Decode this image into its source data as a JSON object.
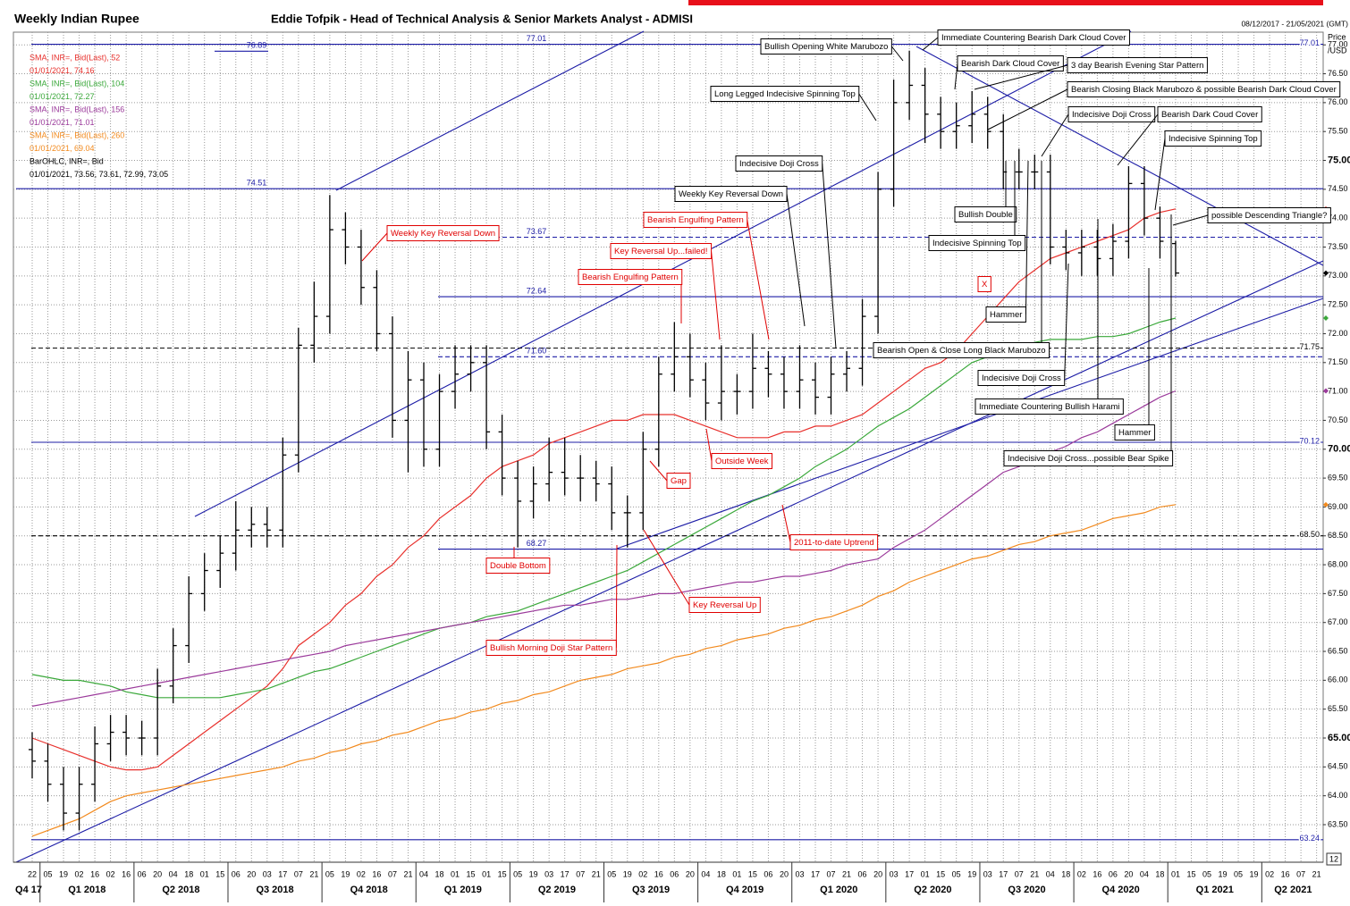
{
  "chart_data": {
    "type": "ohlc",
    "title": "Weekly Indian Rupee",
    "subtitle": "Eddie Tofpik - Head of Technical Analysis & Senior Markets Analyst - ADMISI",
    "date_range": "08/12/2017 - 21/05/2021 (GMT)",
    "ylabel": "Price",
    "yunit": "/USD",
    "scale_box": "12",
    "grid": true,
    "ylim": [
      62.85,
      77.22
    ],
    "yticks": [
      {
        "value": 63.5,
        "label": "63.50"
      },
      {
        "value": 64,
        "label": "64.00"
      },
      {
        "value": 64.5,
        "label": "64.50"
      },
      {
        "value": 65,
        "label": "65.00"
      },
      {
        "value": 65.5,
        "label": "65.50"
      },
      {
        "value": 66,
        "label": "66.00"
      },
      {
        "value": 66.5,
        "label": "66.50"
      },
      {
        "value": 67,
        "label": "67.00"
      },
      {
        "value": 67.5,
        "label": "67.50"
      },
      {
        "value": 68,
        "label": "68.00"
      },
      {
        "value": 68.5,
        "label": "68.50"
      },
      {
        "value": 69,
        "label": "69.00"
      },
      {
        "value": 69.5,
        "label": "69.50"
      },
      {
        "value": 70,
        "label": "70.00"
      },
      {
        "value": 70.5,
        "label": "70.50"
      },
      {
        "value": 71,
        "label": "71.00"
      },
      {
        "value": 71.5,
        "label": "71.50"
      },
      {
        "value": 72,
        "label": "72.00"
      },
      {
        "value": 72.5,
        "label": "72.50"
      },
      {
        "value": 73,
        "label": "73.00"
      },
      {
        "value": 73.5,
        "label": "73.50"
      },
      {
        "value": 74,
        "label": "74.00"
      },
      {
        "value": 74.5,
        "label": "74.50"
      },
      {
        "value": 75,
        "label": "75.00"
      },
      {
        "value": 75.5,
        "label": "75.50"
      },
      {
        "value": 76,
        "label": "76.00"
      },
      {
        "value": 76.5,
        "label": "76.50"
      },
      {
        "value": 77,
        "label": "77.00"
      }
    ],
    "categories": [
      "22",
      "05",
      "19",
      "02",
      "16",
      "02",
      "16",
      "06",
      "20",
      "04",
      "18",
      "01",
      "15",
      "06",
      "20",
      "03",
      "17",
      "07",
      "21",
      "05",
      "19",
      "02",
      "16",
      "07",
      "21",
      "04",
      "18",
      "01",
      "15",
      "01",
      "15",
      "05",
      "19",
      "03",
      "17",
      "07",
      "21",
      "05",
      "19",
      "02",
      "16",
      "06",
      "20",
      "04",
      "18",
      "01",
      "15",
      "06",
      "20",
      "03",
      "17",
      "07",
      "21",
      "06",
      "20",
      "03",
      "17",
      "01",
      "15",
      "05",
      "19",
      "03",
      "17",
      "07",
      "21",
      "04",
      "18",
      "02",
      "16",
      "06",
      "20",
      "04",
      "18",
      "01",
      "15",
      "05",
      "19",
      "05",
      "19",
      "02",
      "16",
      "07",
      "21"
    ],
    "quarters": [
      "Q4 17",
      "Q1 2018",
      "Q2 2018",
      "Q3 2018",
      "Q4 2018",
      "Q1 2019",
      "Q2 2019",
      "Q3 2019",
      "Q4 2019",
      "Q1 2020",
      "Q2 2020",
      "Q3 2020",
      "Q4 2020",
      "Q1 2021",
      "Q2 2021"
    ],
    "ohlc": {
      "name": "BarOHLC, INR=, Bid",
      "note": "01/01/2021, 73.56, 73.61, 72.99, 73.05",
      "color": "#000000",
      "open": [
        64.8,
        64.6,
        64.2,
        63.7,
        64.2,
        64.9,
        65.1,
        65.0,
        65.0,
        65.9,
        66.6,
        67.5,
        67.9,
        68.2,
        68.6,
        68.7,
        68.6,
        69.9,
        71.8,
        72.3,
        73.8,
        73.5,
        72.8,
        72.0,
        70.5,
        71.2,
        70.0,
        71.0,
        71.3,
        71.5,
        70.3,
        69.5,
        69.1,
        69.4,
        69.6,
        69.5,
        69.5,
        69.4,
        68.9,
        68.9,
        70.0,
        71.3,
        71.6,
        71.2,
        70.8,
        71.0,
        71.0,
        71.4,
        71.3,
        71.0,
        71.2,
        70.9,
        71.3,
        71.4,
        72.3,
        74.5,
        76.0,
        76.3,
        75.8,
        75.5,
        75.6,
        75.8,
        75.5,
        74.8,
        74.8,
        74.8,
        73.5,
        73.4,
        73.5,
        73.3,
        73.6,
        74.6,
        74.0,
        73.56,
        null,
        null,
        null,
        null,
        null,
        null,
        null,
        null,
        null
      ],
      "high": [
        65.1,
        64.9,
        64.5,
        64.5,
        65.2,
        65.4,
        65.4,
        65.3,
        66.2,
        66.9,
        67.8,
        68.2,
        68.5,
        69.1,
        69.0,
        69.0,
        70.2,
        72.1,
        72.9,
        74.4,
        74.1,
        73.8,
        73.1,
        72.3,
        71.7,
        71.5,
        71.3,
        71.8,
        71.8,
        71.8,
        70.6,
        69.8,
        69.7,
        70.2,
        70.2,
        69.9,
        69.8,
        69.7,
        69.2,
        70.3,
        71.6,
        72.2,
        72.0,
        71.5,
        71.8,
        71.3,
        72.0,
        71.7,
        71.6,
        71.8,
        71.5,
        71.6,
        71.7,
        72.6,
        74.8,
        76.4,
        76.9,
        76.6,
        76.1,
        76.0,
        76.2,
        76.1,
        75.8,
        75.2,
        75.1,
        75.1,
        73.8,
        73.8,
        73.8,
        73.9,
        74.9,
        74.9,
        74.2,
        73.61,
        null,
        null,
        null,
        null,
        null,
        null,
        null,
        null,
        null
      ],
      "low": [
        64.3,
        63.9,
        63.4,
        63.4,
        63.9,
        64.6,
        64.7,
        64.7,
        64.7,
        65.6,
        66.3,
        67.2,
        67.6,
        67.9,
        68.3,
        68.3,
        68.3,
        69.6,
        71.5,
        72.0,
        73.2,
        72.5,
        71.7,
        70.2,
        69.6,
        69.7,
        69.7,
        70.7,
        71.0,
        70.0,
        69.2,
        68.3,
        68.8,
        69.1,
        69.2,
        69.1,
        69.1,
        68.6,
        68.3,
        68.6,
        69.7,
        71.0,
        70.9,
        70.5,
        70.5,
        70.6,
        70.7,
        70.9,
        70.7,
        70.7,
        70.6,
        70.6,
        71.0,
        71.1,
        72.0,
        74.2,
        75.7,
        75.3,
        75.2,
        75.2,
        75.3,
        75.2,
        74.5,
        74.5,
        74.5,
        73.2,
        73.1,
        73.0,
        73.0,
        73.0,
        73.3,
        73.7,
        73.3,
        72.99,
        null,
        null,
        null,
        null,
        null,
        null,
        null,
        null,
        null
      ],
      "close": [
        64.6,
        64.2,
        63.7,
        64.2,
        64.9,
        65.1,
        65.0,
        65.0,
        65.9,
        66.6,
        67.5,
        67.9,
        68.2,
        68.6,
        68.7,
        68.6,
        69.9,
        71.8,
        72.3,
        73.8,
        73.5,
        72.8,
        72.0,
        70.5,
        71.2,
        70.0,
        71.0,
        71.3,
        71.5,
        70.3,
        69.5,
        69.1,
        69.4,
        69.6,
        69.5,
        69.5,
        69.4,
        68.9,
        68.9,
        70.0,
        71.3,
        71.6,
        71.2,
        70.8,
        71.0,
        71.0,
        71.4,
        71.3,
        71.0,
        71.2,
        70.9,
        71.3,
        71.4,
        72.3,
        74.5,
        76.0,
        76.3,
        75.8,
        75.5,
        75.6,
        75.8,
        75.5,
        74.8,
        74.8,
        74.8,
        73.5,
        73.4,
        73.5,
        73.3,
        73.6,
        74.6,
        74.0,
        73.6,
        73.05,
        null,
        null,
        null,
        null,
        null,
        null,
        null,
        null,
        null
      ]
    },
    "series": [
      {
        "name": "SMA, INR=, Bid(Last), 52",
        "note": "01/01/2021, 74.16",
        "color": "#e8302c",
        "values": [
          65.0,
          64.9,
          64.8,
          64.7,
          64.6,
          64.5,
          64.45,
          64.45,
          64.5,
          64.7,
          64.9,
          65.1,
          65.3,
          65.5,
          65.7,
          65.9,
          66.2,
          66.6,
          66.8,
          67.0,
          67.3,
          67.5,
          67.8,
          68.0,
          68.3,
          68.5,
          68.8,
          69.0,
          69.2,
          69.5,
          69.7,
          69.8,
          69.9,
          70.1,
          70.2,
          70.3,
          70.4,
          70.5,
          70.5,
          70.6,
          70.6,
          70.6,
          70.5,
          70.4,
          70.3,
          70.2,
          70.2,
          70.2,
          70.3,
          70.3,
          70.4,
          70.4,
          70.5,
          70.6,
          70.8,
          71.0,
          71.2,
          71.4,
          71.5,
          71.7,
          72.0,
          72.3,
          72.6,
          72.9,
          73.1,
          73.3,
          73.4,
          73.5,
          73.6,
          73.7,
          73.8,
          74.0,
          74.1,
          74.16,
          null,
          null,
          null,
          null,
          null,
          null,
          null,
          null,
          null
        ]
      },
      {
        "name": "SMA, INR=, Bid(Last), 104",
        "note": "01/01/2021, 72.27",
        "color": "#3aa83a",
        "values": [
          66.1,
          66.05,
          66.0,
          66.0,
          65.95,
          65.9,
          65.8,
          65.75,
          65.7,
          65.7,
          65.7,
          65.7,
          65.7,
          65.75,
          65.8,
          65.85,
          65.95,
          66.05,
          66.15,
          66.2,
          66.3,
          66.4,
          66.5,
          66.6,
          66.7,
          66.8,
          66.9,
          66.95,
          67.0,
          67.1,
          67.15,
          67.2,
          67.3,
          67.4,
          67.5,
          67.6,
          67.7,
          67.8,
          67.9,
          68.05,
          68.2,
          68.35,
          68.5,
          68.65,
          68.8,
          68.95,
          69.1,
          69.2,
          69.35,
          69.5,
          69.7,
          69.85,
          70.0,
          70.2,
          70.4,
          70.55,
          70.7,
          70.9,
          71.1,
          71.3,
          71.5,
          71.6,
          71.7,
          71.8,
          71.85,
          71.9,
          71.9,
          71.9,
          71.95,
          71.95,
          72.0,
          72.1,
          72.2,
          72.27,
          null,
          null,
          null,
          null,
          null,
          null,
          null,
          null,
          null
        ]
      },
      {
        "name": "SMA, INR=, Bid(Last), 156",
        "note": "01/01/2021, 71.01",
        "color": "#9b3a9b",
        "values": [
          65.55,
          65.6,
          65.65,
          65.7,
          65.75,
          65.8,
          65.85,
          65.9,
          65.95,
          66.0,
          66.05,
          66.1,
          66.15,
          66.2,
          66.25,
          66.3,
          66.35,
          66.4,
          66.45,
          66.5,
          66.6,
          66.65,
          66.7,
          66.75,
          66.8,
          66.85,
          66.9,
          66.95,
          67.0,
          67.05,
          67.1,
          67.15,
          67.2,
          67.25,
          67.3,
          67.3,
          67.35,
          67.4,
          67.4,
          67.45,
          67.5,
          67.5,
          67.55,
          67.6,
          67.65,
          67.7,
          67.7,
          67.75,
          67.8,
          67.8,
          67.85,
          67.9,
          68.0,
          68.05,
          68.1,
          68.3,
          68.45,
          68.6,
          68.8,
          69.0,
          69.2,
          69.4,
          69.6,
          69.7,
          69.85,
          69.95,
          70.05,
          70.2,
          70.3,
          70.45,
          70.6,
          70.75,
          70.9,
          71.01,
          null,
          null,
          null,
          null,
          null,
          null,
          null,
          null,
          null
        ]
      },
      {
        "name": "SMA, INR=, Bid(Last), 260",
        "note": "01/01/2021, 69.04",
        "color": "#f28a1e",
        "values": [
          63.3,
          63.4,
          63.5,
          63.6,
          63.75,
          63.9,
          64.0,
          64.05,
          64.1,
          64.15,
          64.2,
          64.25,
          64.3,
          64.35,
          64.4,
          64.45,
          64.5,
          64.6,
          64.65,
          64.75,
          64.8,
          64.9,
          64.95,
          65.05,
          65.1,
          65.2,
          65.3,
          65.35,
          65.45,
          65.5,
          65.6,
          65.65,
          65.75,
          65.8,
          65.9,
          66.0,
          66.05,
          66.1,
          66.2,
          66.25,
          66.3,
          66.4,
          66.45,
          66.55,
          66.6,
          66.7,
          66.75,
          66.8,
          66.9,
          66.95,
          67.05,
          67.1,
          67.2,
          67.3,
          67.45,
          67.55,
          67.7,
          67.8,
          67.9,
          68.0,
          68.1,
          68.15,
          68.25,
          68.35,
          68.4,
          68.5,
          68.55,
          68.6,
          68.7,
          68.8,
          68.85,
          68.9,
          69.0,
          69.04,
          null,
          null,
          null,
          null,
          null,
          null,
          null,
          null,
          null
        ]
      }
    ],
    "levels": [
      {
        "value": 77.01,
        "label": "77.01"
      },
      {
        "value": 76.89,
        "label": "76.89"
      },
      {
        "value": 74.51,
        "label": "74.51"
      },
      {
        "value": 73.67,
        "label": "73.67"
      },
      {
        "value": 72.64,
        "label": "72.64"
      },
      {
        "value": 71.75,
        "label": "71.75"
      },
      {
        "value": 71.6,
        "label": "71.60"
      },
      {
        "value": 70.12,
        "label": "70.12"
      },
      {
        "value": 68.5,
        "label": "68.50"
      },
      {
        "value": 68.27,
        "label": "68.27"
      },
      {
        "value": 63.24,
        "label": "63.24"
      }
    ],
    "annotations": [
      {
        "text": "Bullish Opening White Marubozo",
        "color": "#000000"
      },
      {
        "text": "Immediate Countering Bearish Dark Cloud Cover",
        "color": "#000000"
      },
      {
        "text": "Bearish Dark Cloud Cover",
        "color": "#000000"
      },
      {
        "text": "3 day Bearish Evening Star Pattern",
        "color": "#000000"
      },
      {
        "text": "Long Legged Indecisive Spinning Top",
        "color": "#000000"
      },
      {
        "text": "Bearish Closing Black Marubozo & possible Bearish Dark Cloud Cover",
        "color": "#000000"
      },
      {
        "text": "Indecisive Doji Cross",
        "color": "#000000"
      },
      {
        "text": "Bearish Dark Coud Cover",
        "color": "#000000"
      },
      {
        "text": "Indecisive Spinning Top",
        "color": "#000000"
      },
      {
        "text": "Indecisive Doji Cross",
        "color": "#000000"
      },
      {
        "text": "Weekly Key Reversal Down",
        "color": "#000000"
      },
      {
        "text": "Bullish Double",
        "color": "#000000"
      },
      {
        "text": "possible Descending Triangle?",
        "color": "#000000"
      },
      {
        "text": "Indecisive Spinning Top",
        "color": "#000000"
      },
      {
        "text": "Hammer",
        "color": "#000000"
      },
      {
        "text": "Bearish Open & Close Long Black Marubozo",
        "color": "#000000"
      },
      {
        "text": "Indecisive Doji Cross",
        "color": "#000000"
      },
      {
        "text": "Immediate Countering Bullish Harami",
        "color": "#000000"
      },
      {
        "text": "Hammer",
        "color": "#000000"
      },
      {
        "text": "Indecisive Doji Cross...possible Bear Spike",
        "color": "#000000"
      },
      {
        "text": "Weekly Key Reversal Down",
        "color": "#e00000"
      },
      {
        "text": "Bearish Engulfing Pattern",
        "color": "#e00000"
      },
      {
        "text": "Key Reversal Up...failed!",
        "color": "#e00000"
      },
      {
        "text": "Bearish Engulfing Pattern",
        "color": "#e00000"
      },
      {
        "text": "X",
        "color": "#e00000"
      },
      {
        "text": "Outside Week",
        "color": "#e00000"
      },
      {
        "text": "Gap",
        "color": "#e00000"
      },
      {
        "text": "2011-to-date Uptrend",
        "color": "#e00000"
      },
      {
        "text": "Double Bottom",
        "color": "#e00000"
      },
      {
        "text": "Key Reversal Up",
        "color": "#e00000"
      },
      {
        "text": "Bullish Morning Doji Star Pattern",
        "color": "#e00000"
      }
    ]
  }
}
